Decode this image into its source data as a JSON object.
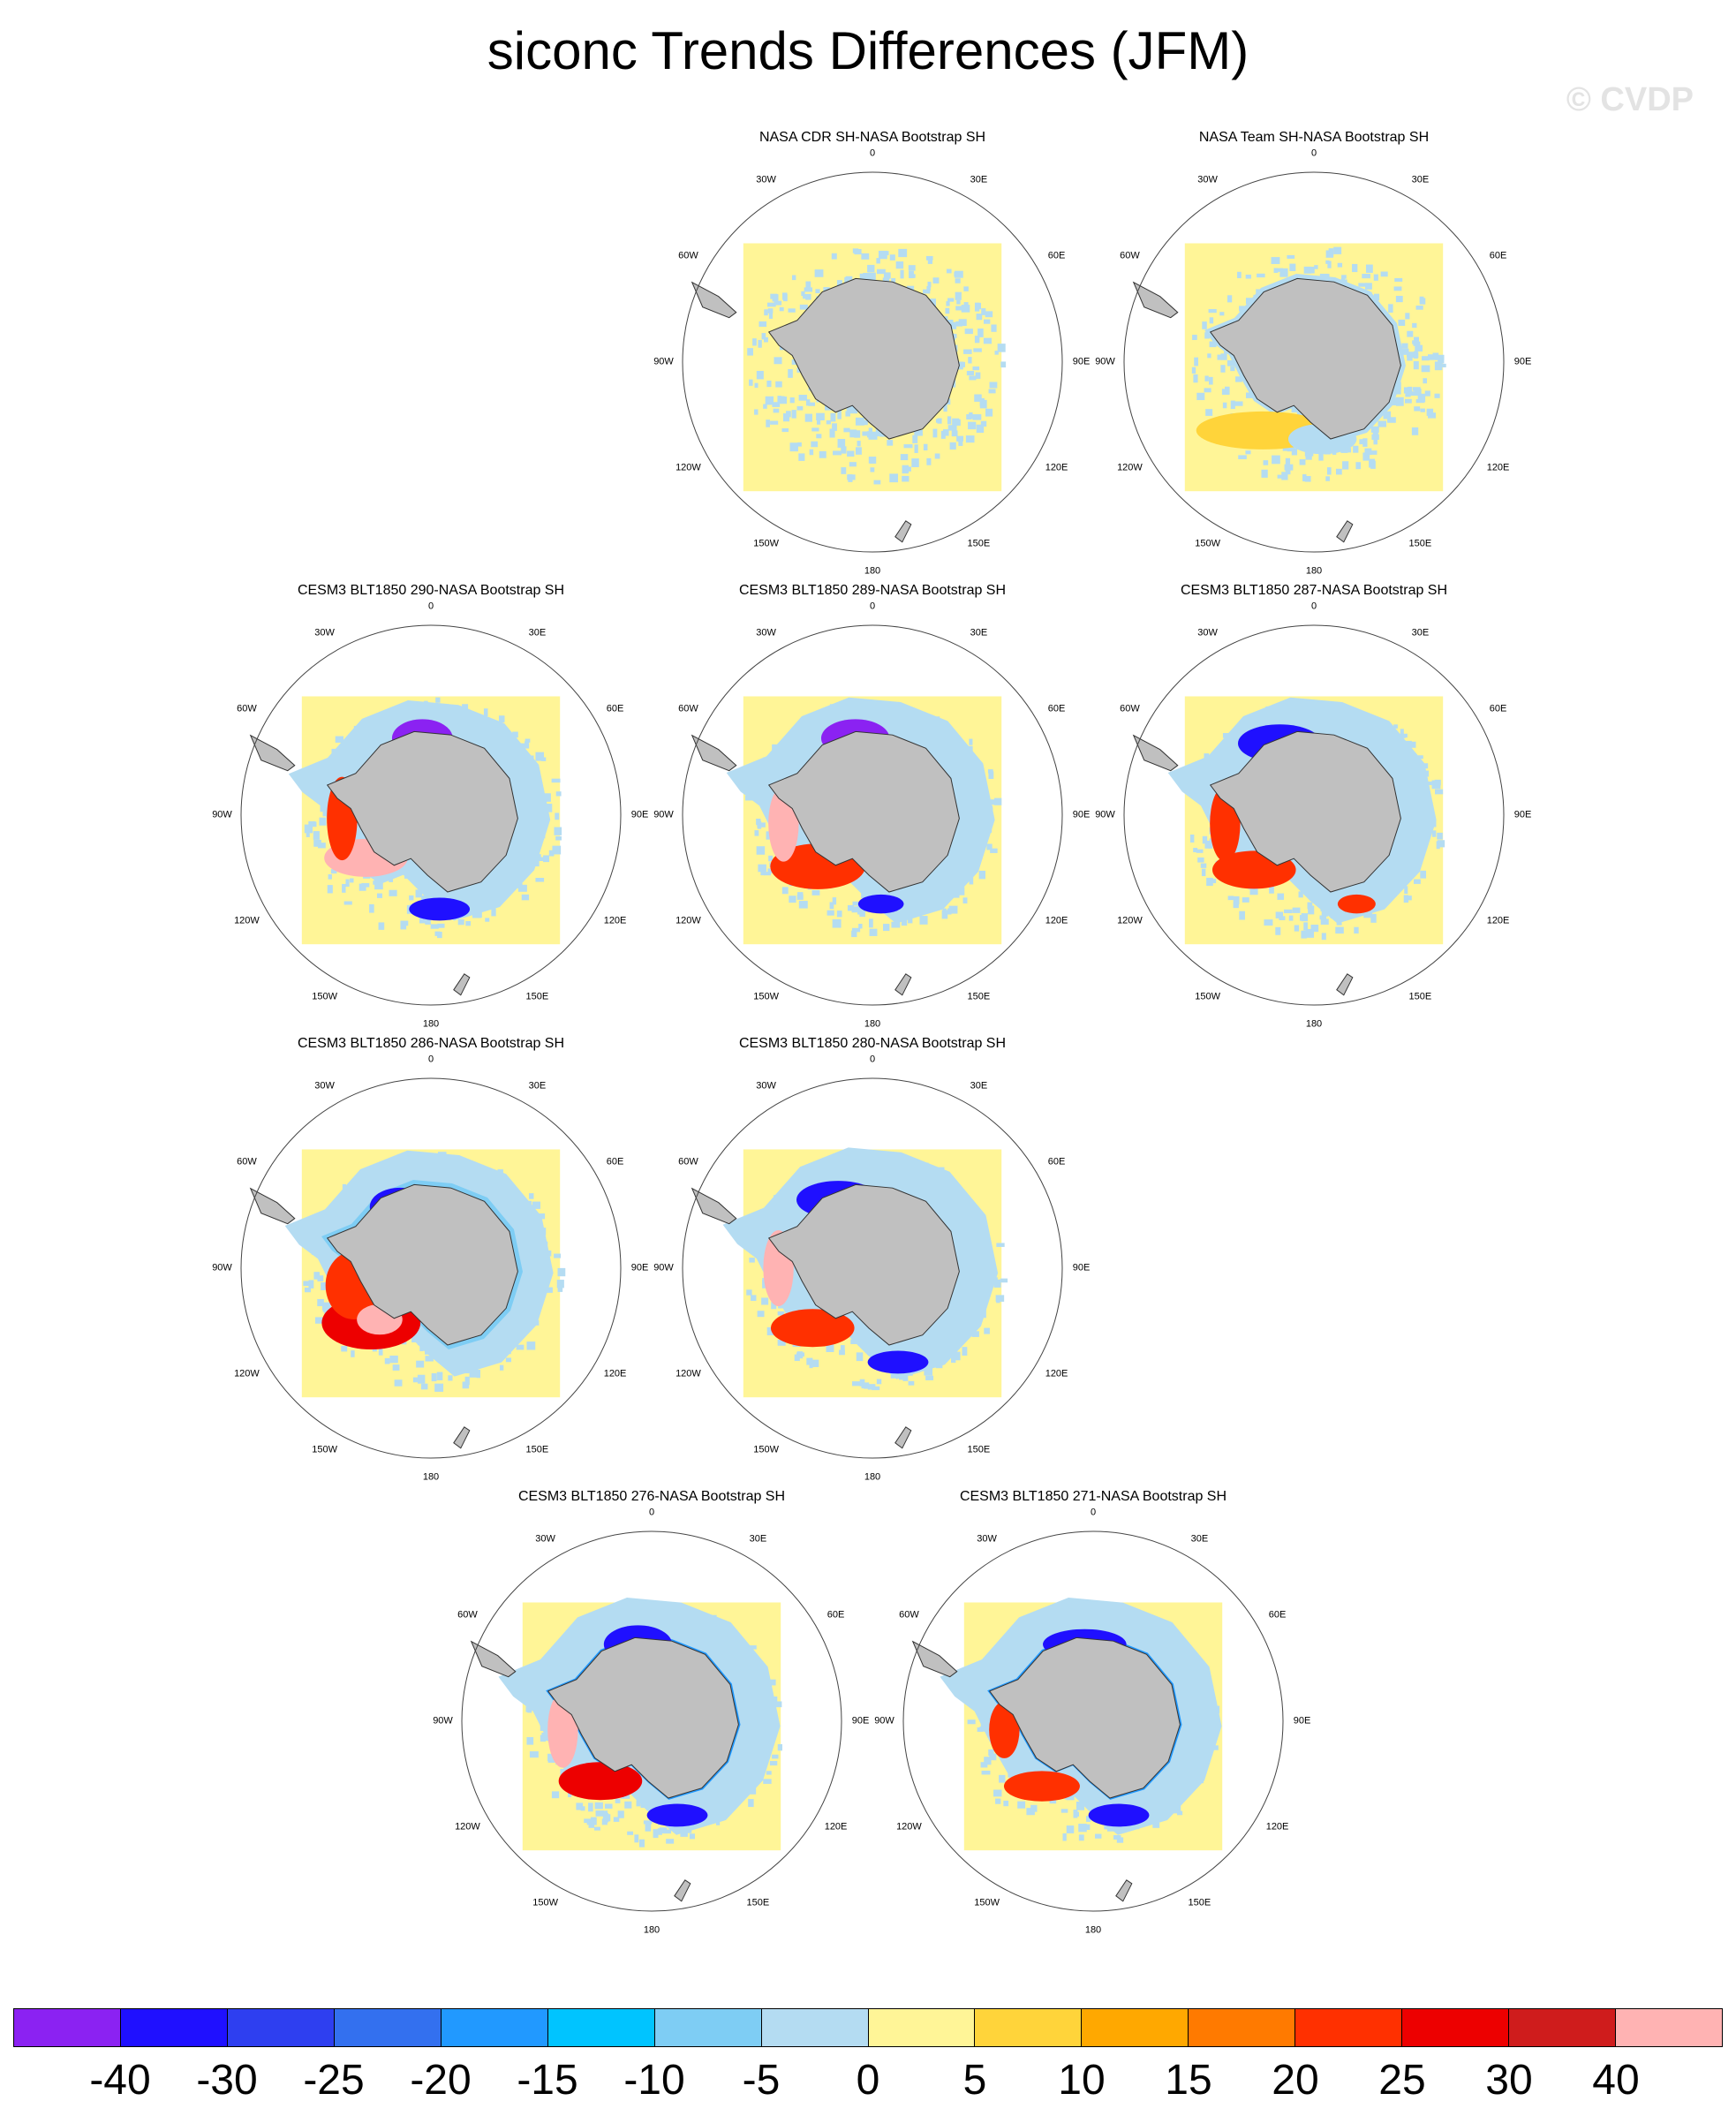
{
  "figure": {
    "title": "siconc Trends Differences (JFM)",
    "watermark": "© CVDP"
  },
  "map_labels": {
    "top": "0",
    "bottom": "180",
    "n30w": "30W",
    "n30e": "30E",
    "w60": "60W",
    "e60": "60E",
    "w90": "90W",
    "e90": "90E",
    "w120": "120W",
    "e120": "120E",
    "s150w": "150W",
    "s150e": "150E"
  },
  "panels": [
    {
      "title": "NASA CDR SH-NASA Bootstrap SH",
      "pattern": "obs1"
    },
    {
      "title": "NASA Team SH-NASA Bootstrap SH",
      "pattern": "obs2"
    },
    {
      "title": "CESM3 BLT1850 290-NASA Bootstrap SH",
      "pattern": "m290"
    },
    {
      "title": "CESM3 BLT1850 289-NASA Bootstrap SH",
      "pattern": "m289"
    },
    {
      "title": "CESM3 BLT1850 287-NASA Bootstrap SH",
      "pattern": "m287"
    },
    {
      "title": "CESM3 BLT1850 286-NASA Bootstrap SH",
      "pattern": "m286"
    },
    {
      "title": "CESM3 BLT1850 280-NASA Bootstrap SH",
      "pattern": "m280"
    },
    {
      "title": "CESM3 BLT1850 276-NASA Bootstrap SH",
      "pattern": "m276"
    },
    {
      "title": "CESM3 BLT1850 271-NASA Bootstrap SH",
      "pattern": "m271"
    }
  ],
  "colorbar": {
    "colors": [
      "#8b22f2",
      "#1f10ff",
      "#2e3ff0",
      "#3370ef",
      "#2199ff",
      "#00c4ff",
      "#7ecdf4",
      "#b4dcf2",
      "#fff597",
      "#ffd43a",
      "#ffa800",
      "#ff7a00",
      "#ff3000",
      "#ed0000",
      "#cf1c1c",
      "#ffb3b3"
    ],
    "labels": [
      "-40",
      "-30",
      "-25",
      "-20",
      "-15",
      "-10",
      "-5",
      "0",
      "5",
      "10",
      "15",
      "20",
      "25",
      "30",
      "40"
    ]
  }
}
